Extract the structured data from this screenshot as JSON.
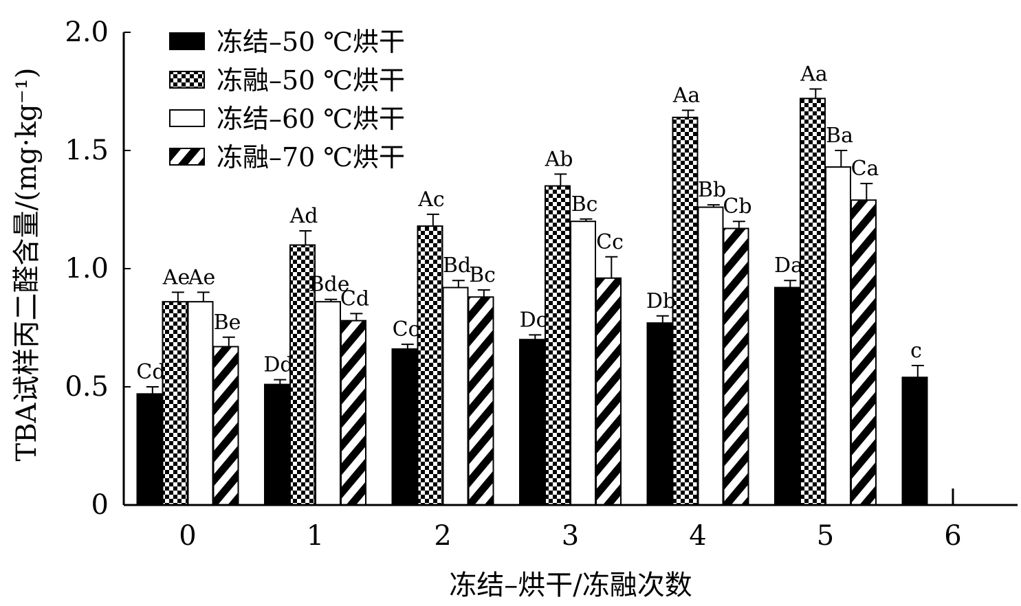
{
  "chart_data": {
    "type": "bar",
    "title": "",
    "ylabel": "TBA试样丙二醛含量/(mg·kg⁻¹)",
    "xlabel": "冻结–烘干/冻融次数",
    "ylim": [
      0,
      2.0
    ],
    "yticks": [
      0,
      0.5,
      1.0,
      1.5,
      2.0
    ],
    "ytick_labels": [
      "0",
      "0.5",
      "1.0",
      "1.5",
      "2.0"
    ],
    "categories": [
      "0",
      "1",
      "2",
      "3",
      "4",
      "5",
      "6"
    ],
    "legend_position": "top-left",
    "grid": false,
    "series": [
      {
        "name": "冻结–50 ℃烘干",
        "pattern": "solid",
        "values": [
          0.47,
          0.51,
          0.66,
          0.7,
          0.77,
          0.92,
          0.54
        ],
        "errors": [
          0.03,
          0.02,
          0.02,
          0.02,
          0.03,
          0.03,
          0.05
        ],
        "labels": [
          "Cd",
          "Dd",
          "Cc",
          "Dc",
          "Db",
          "Da",
          "c"
        ]
      },
      {
        "name": "冻融–50 ℃烘干",
        "pattern": "checker",
        "values": [
          0.86,
          1.1,
          1.18,
          1.35,
          1.64,
          1.72,
          null
        ],
        "errors": [
          0.04,
          0.06,
          0.05,
          0.05,
          0.03,
          0.04,
          null
        ],
        "labels": [
          "Ae",
          "Ad",
          "Ac",
          "Ab",
          "Aa",
          "Aa",
          ""
        ]
      },
      {
        "name": "冻结–60 ℃烘干",
        "pattern": "open",
        "values": [
          0.86,
          0.86,
          0.92,
          1.2,
          1.26,
          1.43,
          null
        ],
        "errors": [
          0.04,
          0.01,
          0.03,
          0.01,
          0.01,
          0.07,
          null
        ],
        "labels": [
          "Ae",
          "Bde",
          "Bd",
          "Bc",
          "Bb",
          "Ba",
          ""
        ]
      },
      {
        "name": "冻融–70 ℃烘干",
        "pattern": "stripe",
        "values": [
          0.67,
          0.78,
          0.88,
          0.96,
          1.17,
          1.29,
          null
        ],
        "errors": [
          0.04,
          0.03,
          0.03,
          0.09,
          0.03,
          0.07,
          null
        ],
        "labels": [
          "Be",
          "Cd",
          "Bc",
          "Cc",
          "Cb",
          "Ca",
          ""
        ]
      }
    ]
  }
}
